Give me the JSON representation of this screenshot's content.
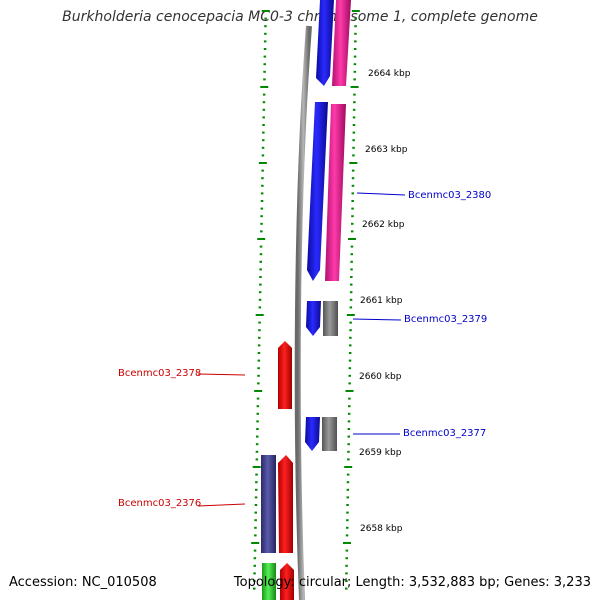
{
  "title": "Burkholderia cenocepacia MC0-3 chromosome 1, complete genome",
  "footer": {
    "accession_label": "Accession: NC_010508",
    "topology_label": "Topology: circular; Length: 3,532,883 bp; Genes: 3,233"
  },
  "colors": {
    "forward_gene": "#1010ee",
    "forward_cds": "#ff1a9a",
    "reverse_gene": "#ff1010",
    "reverse_cds_dark": "#4a4a9a",
    "reverse_green": "#33cc33",
    "pseudo": "#777777",
    "backbone": "#8a8a8a",
    "ticks": "#008800",
    "link_blue": "#0000cc",
    "link_red": "#cc0000"
  },
  "scale": {
    "labels": [
      "2664 kbp",
      "2663 kbp",
      "2662 kbp",
      "2661 kbp",
      "2660 kbp",
      "2659 kbp",
      "2658 kbp"
    ]
  },
  "genes": {
    "right": [
      "Bcenmc03_2380",
      "Bcenmc03_2379",
      "Bcenmc03_2377"
    ],
    "left": [
      "Bcenmc03_2378",
      "Bcenmc03_2376"
    ]
  }
}
